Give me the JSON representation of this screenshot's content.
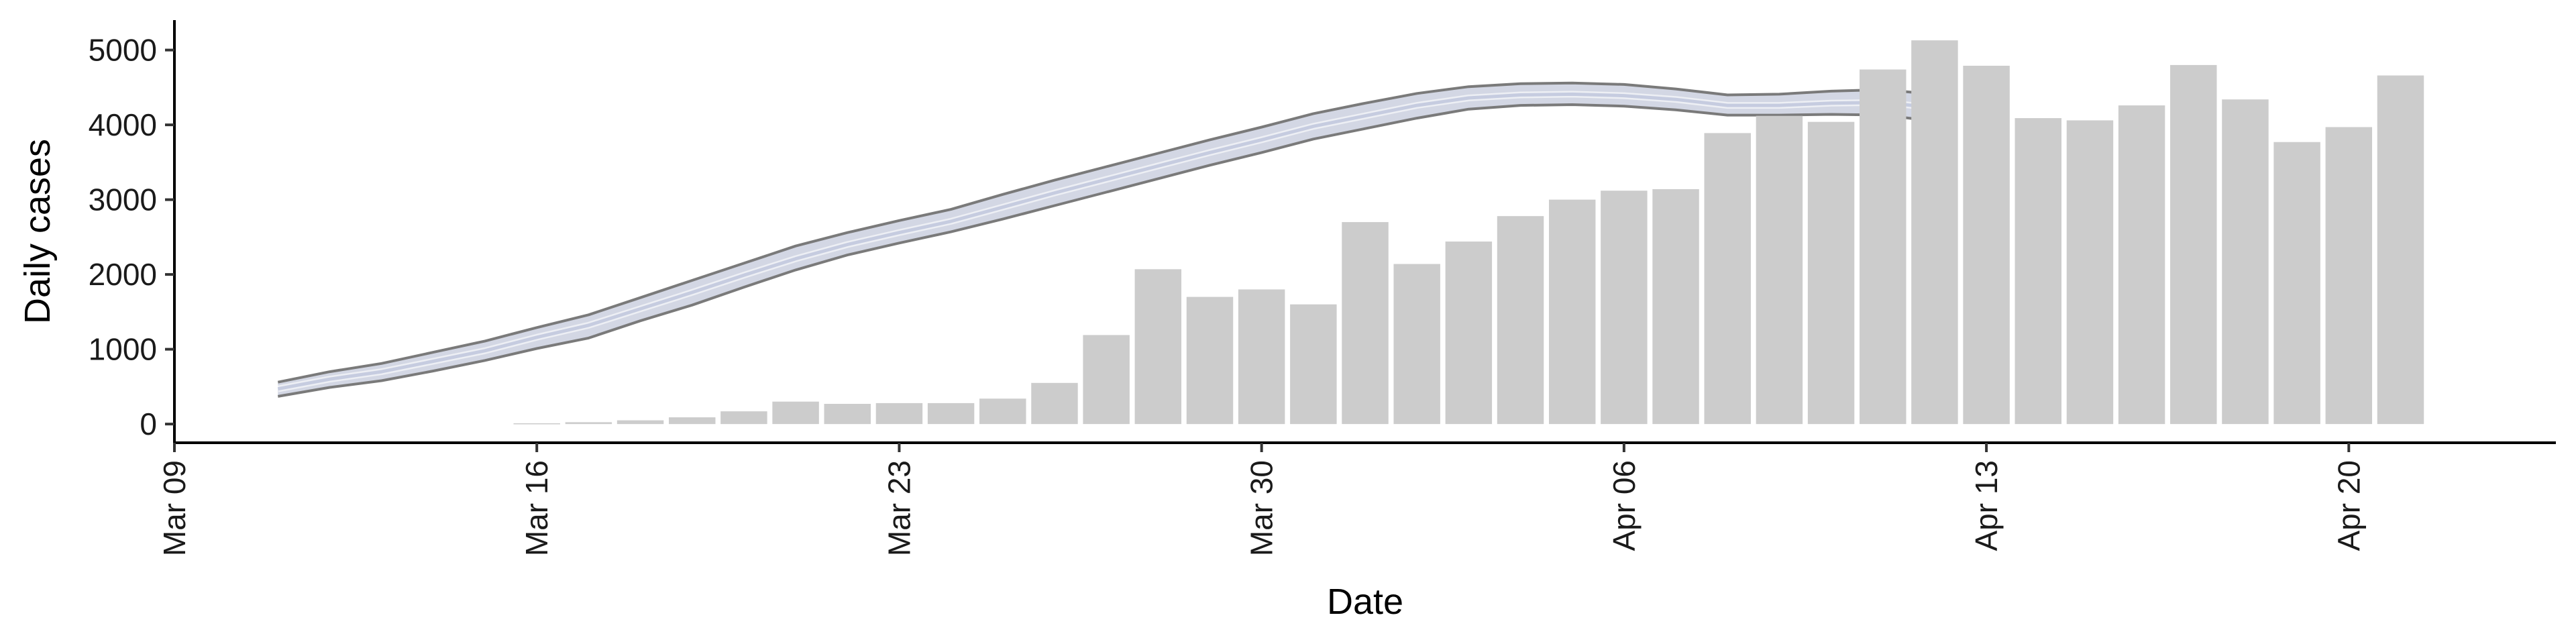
{
  "chart_data": {
    "type": "bar",
    "title": "",
    "xlabel": "Date",
    "ylabel": "Daily cases",
    "ylim": [
      -250,
      5400
    ],
    "xlim": [
      "2020-03-09",
      "2020-04-24"
    ],
    "y_ticks": [
      0,
      1000,
      2000,
      3000,
      4000,
      5000
    ],
    "x_ticks": [
      {
        "date": "2020-03-09",
        "label": "Mar 09"
      },
      {
        "date": "2020-03-16",
        "label": "Mar 16"
      },
      {
        "date": "2020-03-23",
        "label": "Mar 23"
      },
      {
        "date": "2020-03-30",
        "label": "Mar 30"
      },
      {
        "date": "2020-04-06",
        "label": "Apr 06"
      },
      {
        "date": "2020-04-13",
        "label": "Apr 13"
      },
      {
        "date": "2020-04-20",
        "label": "Apr 20"
      }
    ],
    "grid": false,
    "legend": "none",
    "bars": {
      "color": "#cccccc",
      "dates": [
        "2020-03-16",
        "2020-03-17",
        "2020-03-18",
        "2020-03-19",
        "2020-03-20",
        "2020-03-21",
        "2020-03-22",
        "2020-03-23",
        "2020-03-24",
        "2020-03-25",
        "2020-03-26",
        "2020-03-27",
        "2020-03-28",
        "2020-03-29",
        "2020-03-30",
        "2020-03-31",
        "2020-04-01",
        "2020-04-02",
        "2020-04-03",
        "2020-04-04",
        "2020-04-05",
        "2020-04-06",
        "2020-04-07",
        "2020-04-08",
        "2020-04-09",
        "2020-04-10",
        "2020-04-11",
        "2020-04-12",
        "2020-04-13",
        "2020-04-14",
        "2020-04-15",
        "2020-04-16",
        "2020-04-17",
        "2020-04-18",
        "2020-04-19",
        "2020-04-20",
        "2020-04-21"
      ],
      "values": [
        10,
        25,
        50,
        90,
        170,
        300,
        270,
        280,
        280,
        340,
        550,
        1190,
        2070,
        1700,
        1800,
        1600,
        2700,
        2140,
        2440,
        2780,
        3000,
        3120,
        3140,
        3890,
        4120,
        4040,
        4740,
        5130,
        4790,
        4090,
        4060,
        4260,
        4800,
        4340,
        3770,
        3970,
        4660
      ]
    },
    "ribbon": {
      "band_color": "#c4cadb",
      "line_color": "#c6cce0",
      "edge_color": "#7a7a7a",
      "dates": [
        "2020-03-11",
        "2020-03-12",
        "2020-03-13",
        "2020-03-14",
        "2020-03-15",
        "2020-03-16",
        "2020-03-17",
        "2020-03-18",
        "2020-03-19",
        "2020-03-20",
        "2020-03-21",
        "2020-03-22",
        "2020-03-23",
        "2020-03-24",
        "2020-03-25",
        "2020-03-26",
        "2020-03-27",
        "2020-03-28",
        "2020-03-29",
        "2020-03-30",
        "2020-03-31",
        "2020-04-01",
        "2020-04-02",
        "2020-04-03",
        "2020-04-04",
        "2020-04-05",
        "2020-04-06",
        "2020-04-07",
        "2020-04-08",
        "2020-04-09",
        "2020-04-10",
        "2020-04-11",
        "2020-04-12"
      ],
      "upper": [
        560,
        700,
        810,
        960,
        1110,
        1290,
        1460,
        1690,
        1920,
        2150,
        2380,
        2560,
        2720,
        2870,
        3070,
        3260,
        3440,
        3620,
        3800,
        3970,
        4150,
        4290,
        4420,
        4510,
        4550,
        4560,
        4540,
        4480,
        4400,
        4410,
        4450,
        4470,
        4410
      ],
      "mid": [
        470,
        600,
        700,
        840,
        980,
        1160,
        1320,
        1540,
        1760,
        1990,
        2210,
        2400,
        2560,
        2710,
        2900,
        3090,
        3270,
        3450,
        3630,
        3800,
        3980,
        4120,
        4260,
        4360,
        4400,
        4410,
        4390,
        4340,
        4260,
        4260,
        4290,
        4300,
        4230
      ],
      "lower": [
        370,
        490,
        580,
        710,
        850,
        1010,
        1150,
        1380,
        1590,
        1830,
        2060,
        2260,
        2420,
        2570,
        2740,
        2920,
        3100,
        3280,
        3460,
        3630,
        3810,
        3950,
        4090,
        4210,
        4260,
        4270,
        4250,
        4200,
        4130,
        4130,
        4140,
        4130,
        4050
      ]
    }
  }
}
